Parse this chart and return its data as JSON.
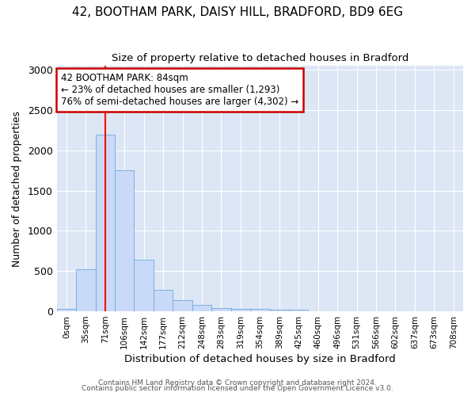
{
  "title_line1": "42, BOOTHAM PARK, DAISY HILL, BRADFORD, BD9 6EG",
  "title_line2": "Size of property relative to detached houses in Bradford",
  "xlabel": "Distribution of detached houses by size in Bradford",
  "ylabel": "Number of detached properties",
  "bar_labels": [
    "0sqm",
    "35sqm",
    "71sqm",
    "106sqm",
    "142sqm",
    "177sqm",
    "212sqm",
    "248sqm",
    "283sqm",
    "319sqm",
    "354sqm",
    "389sqm",
    "425sqm",
    "460sqm",
    "496sqm",
    "531sqm",
    "566sqm",
    "602sqm",
    "637sqm",
    "673sqm",
    "708sqm"
  ],
  "bar_heights": [
    30,
    520,
    2190,
    1750,
    640,
    265,
    140,
    80,
    40,
    30,
    30,
    20,
    20,
    0,
    0,
    0,
    0,
    0,
    0,
    0,
    0
  ],
  "bar_color": "#c9daf8",
  "bar_edge_color": "#6fa8dc",
  "red_line_x": 2,
  "ylim": [
    0,
    3050
  ],
  "annotation_text": "42 BOOTHAM PARK: 84sqm\n← 23% of detached houses are smaller (1,293)\n76% of semi-detached houses are larger (4,302) →",
  "annotation_box_color": "white",
  "annotation_box_edge_color": "#cc0000",
  "footnote1": "Contains HM Land Registry data © Crown copyright and database right 2024.",
  "footnote2": "Contains public sector information licensed under the Open Government Licence v3.0.",
  "fig_bg_color": "#ffffff",
  "plot_bg_color": "#dce6f5",
  "grid_color": "#ffffff",
  "title1_fontsize": 11,
  "title2_fontsize": 10
}
